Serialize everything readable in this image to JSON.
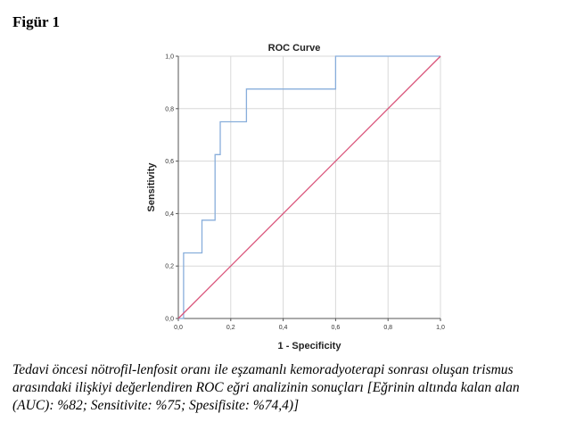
{
  "figure": {
    "label": "Figür 1",
    "caption": "Tedavi öncesi nötrofil-lenfosit oranı ile eşzamanlı kemoradyoterapi sonrası oluşan trismus arasındaki ilişkiyi değerlendiren ROC eğri analizinin sonuçları [Eğrinin altında kalan alan (AUC): %82; Sensitivite: %75; Spesifisite: %74,4)]"
  },
  "chart_data": {
    "type": "line",
    "title": "ROC Curve",
    "xlabel": "1 - Specificity",
    "ylabel": "Sensitivity",
    "xlim": [
      0,
      1
    ],
    "ylim": [
      0,
      1
    ],
    "grid": true,
    "xticks": [
      "0,0",
      "0,2",
      "0,4",
      "0,6",
      "0,8",
      "1,0"
    ],
    "yticks": [
      "0,0",
      "0,2",
      "0,4",
      "0,6",
      "0,8",
      "1,0"
    ],
    "series": [
      {
        "color": "#88aedb",
        "x": [
          0,
          0.02,
          0.02,
          0.09,
          0.09,
          0.14,
          0.14,
          0.16,
          0.16,
          0.26,
          0.26,
          0.6,
          0.6,
          1.0
        ],
        "y": [
          0,
          0,
          0.25,
          0.25,
          0.375,
          0.375,
          0.625,
          0.625,
          0.75,
          0.75,
          0.875,
          0.875,
          1.0,
          1.0
        ]
      },
      {
        "color": "#d9547a",
        "x": [
          0,
          1
        ],
        "y": [
          0,
          1
        ]
      }
    ]
  }
}
